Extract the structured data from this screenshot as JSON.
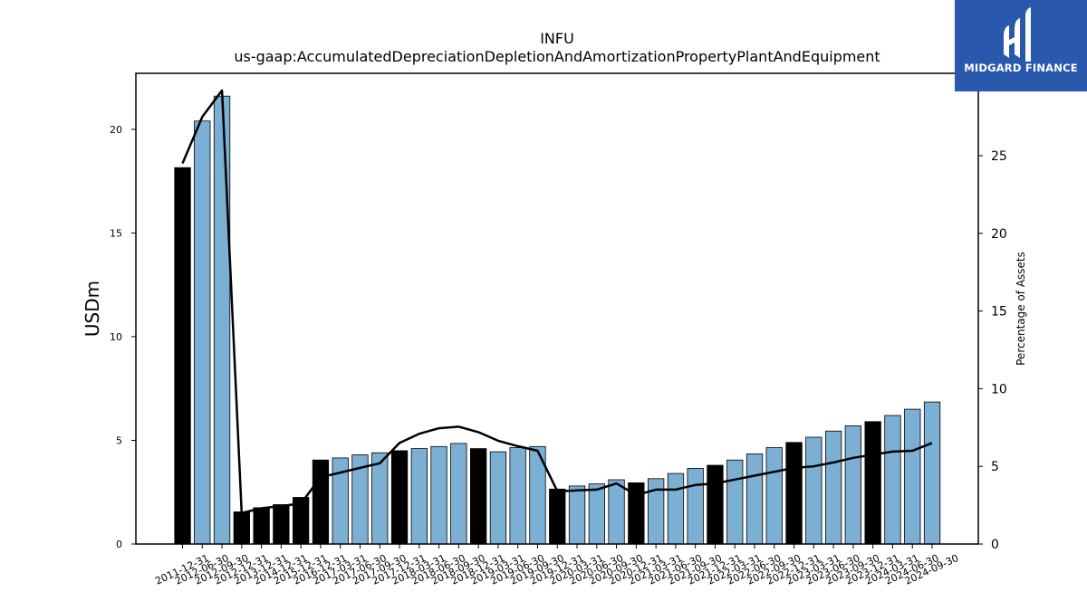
{
  "chart_data": {
    "type": "bar",
    "title": "INFU",
    "subtitle": "us-gaap:AccumulatedDepreciationDepletionAndAmortizationPropertyPlantAndEquipment",
    "ylabel": "USDm",
    "y2label": "Percentage of Assets",
    "ylim": [
      0,
      22.7
    ],
    "y2lim": [
      0,
      30.3
    ],
    "yticks": [
      0,
      5,
      10,
      15,
      20
    ],
    "y2ticks": [
      0,
      5,
      10,
      15,
      20,
      25
    ],
    "categories": [
      "2011-12-31",
      "2012-06-30",
      "2012-09-30",
      "2012-12-31",
      "2013-12-31",
      "2014-12-31",
      "2015-12-31",
      "2016-12-31",
      "2017-03-31",
      "2017-06-30",
      "2017-09-30",
      "2017-12-31",
      "2018-03-31",
      "2018-06-30",
      "2018-09-30",
      "2018-12-31",
      "2019-03-31",
      "2019-06-30",
      "2019-09-30",
      "2019-12-31",
      "2020-03-31",
      "2020-06-30",
      "2020-09-30",
      "2020-12-31",
      "2021-03-31",
      "2021-06-30",
      "2021-09-30",
      "2021-12-31",
      "2022-03-31",
      "2022-06-30",
      "2022-09-30",
      "2022-12-31",
      "2023-03-31",
      "2023-06-30",
      "2023-09-30",
      "2023-12-31",
      "2024-03-31",
      "2024-06-30",
      "2024-09-30"
    ],
    "values": [
      18.15,
      20.4,
      21.6,
      1.55,
      1.75,
      1.9,
      2.25,
      4.05,
      4.15,
      4.3,
      4.4,
      4.5,
      4.6,
      4.7,
      4.85,
      4.6,
      4.45,
      4.65,
      4.7,
      2.65,
      2.8,
      2.9,
      3.1,
      2.95,
      3.15,
      3.4,
      3.65,
      3.8,
      4.05,
      4.35,
      4.65,
      4.9,
      5.15,
      5.45,
      5.7,
      5.9,
      6.2,
      6.5,
      6.85
    ],
    "annual": [
      true,
      false,
      false,
      true,
      true,
      true,
      true,
      true,
      false,
      false,
      false,
      true,
      false,
      false,
      false,
      true,
      false,
      false,
      false,
      true,
      false,
      false,
      false,
      true,
      false,
      false,
      false,
      true,
      false,
      false,
      false,
      true,
      false,
      false,
      false,
      true,
      false,
      false,
      false
    ],
    "line_series": {
      "name": "Percentage of Assets",
      "values": [
        24.5,
        27.5,
        29.2,
        2.0,
        2.3,
        2.45,
        2.6,
        4.3,
        4.6,
        4.9,
        5.2,
        6.5,
        7.1,
        7.45,
        7.55,
        7.2,
        6.65,
        6.3,
        6.0,
        3.4,
        3.45,
        3.5,
        3.9,
        3.15,
        3.5,
        3.5,
        3.8,
        3.9,
        4.15,
        4.4,
        4.65,
        4.9,
        5.0,
        5.25,
        5.55,
        5.75,
        5.95,
        6.0,
        6.5
      ]
    },
    "colors": {
      "annual_bar": "#000000",
      "quarter_bar": "#7bafd4",
      "line": "#000000"
    },
    "grid": false
  },
  "logo": {
    "text": "MIDGARD FINANCE",
    "background": "#2a58ac"
  }
}
